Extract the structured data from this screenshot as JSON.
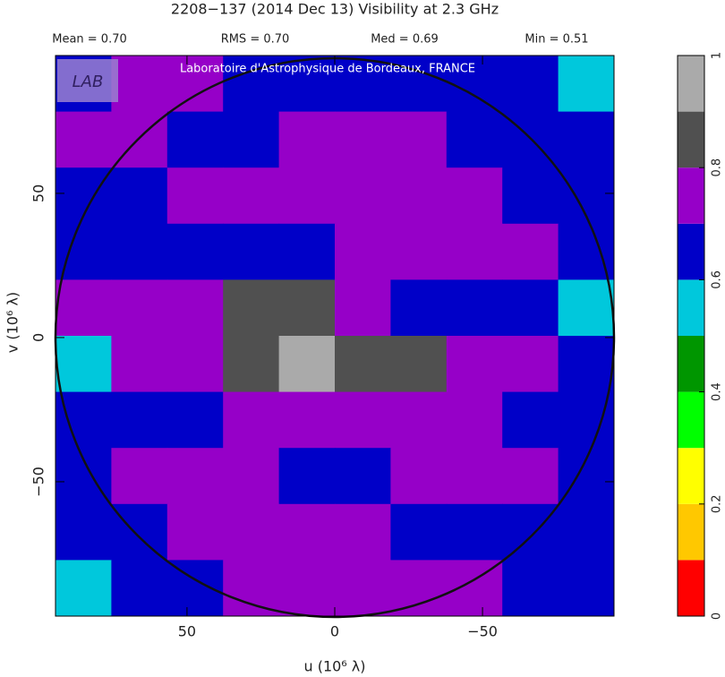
{
  "chart_data": {
    "type": "heatmap",
    "title": "2208−137  (2014 Dec 13)   Visibility at  2.3 GHz",
    "stats": [
      "Mean =  0.70",
      "RMS =  0.70",
      "Med =  0.69",
      "Min =  0.51"
    ],
    "watermark": "Laboratoire d'Astrophysique de Bordeaux, FRANCE",
    "logo": "LAB",
    "x_label": "u  (10⁶ λ)",
    "y_label": "v  (10⁶ λ)",
    "xlim": [
      94.5,
      -94.5
    ],
    "ylim": [
      -96.6,
      97.8
    ],
    "xticks": [
      50,
      0,
      {
        "value": -50,
        "label": "−50"
      }
    ],
    "yticks": [
      {
        "value": -50,
        "label": "−50"
      },
      0,
      50
    ],
    "z": [
      [
        0.65,
        0.75,
        0.75,
        0.65,
        0.65,
        0.65,
        0.65,
        0.65,
        0.65,
        0.55
      ],
      [
        0.75,
        0.75,
        0.65,
        0.65,
        0.75,
        0.75,
        0.75,
        0.65,
        0.65,
        0.65
      ],
      [
        0.65,
        0.65,
        0.75,
        0.75,
        0.75,
        0.75,
        0.75,
        0.75,
        0.65,
        0.65
      ],
      [
        0.65,
        0.65,
        0.65,
        0.65,
        0.65,
        0.75,
        0.75,
        0.75,
        0.75,
        0.65
      ],
      [
        0.75,
        0.75,
        0.75,
        0.85,
        0.85,
        0.75,
        0.65,
        0.65,
        0.65,
        0.55
      ],
      [
        0.55,
        0.75,
        0.75,
        0.85,
        0.95,
        0.85,
        0.85,
        0.75,
        0.75,
        0.65
      ],
      [
        0.65,
        0.65,
        0.65,
        0.75,
        0.75,
        0.75,
        0.75,
        0.75,
        0.65,
        0.65
      ],
      [
        0.65,
        0.75,
        0.75,
        0.75,
        0.65,
        0.65,
        0.75,
        0.75,
        0.75,
        0.65
      ],
      [
        0.65,
        0.65,
        0.75,
        0.75,
        0.75,
        0.75,
        0.65,
        0.65,
        0.65,
        0.65
      ],
      [
        0.55,
        0.65,
        0.65,
        0.75,
        0.75,
        0.75,
        0.75,
        0.75,
        0.65,
        0.65
      ]
    ],
    "colorbar": {
      "lim": [
        0,
        1
      ],
      "ticks": [
        0,
        0.2,
        0.4,
        0.6,
        0.8,
        1
      ],
      "colors": [
        "#ff0000",
        "#ffc800",
        "#ffff00",
        "#00ff00",
        "#009600",
        "#00c8dc",
        "#0000c8",
        "#9600c8",
        "#505050",
        "#aaaaaa"
      ]
    }
  }
}
